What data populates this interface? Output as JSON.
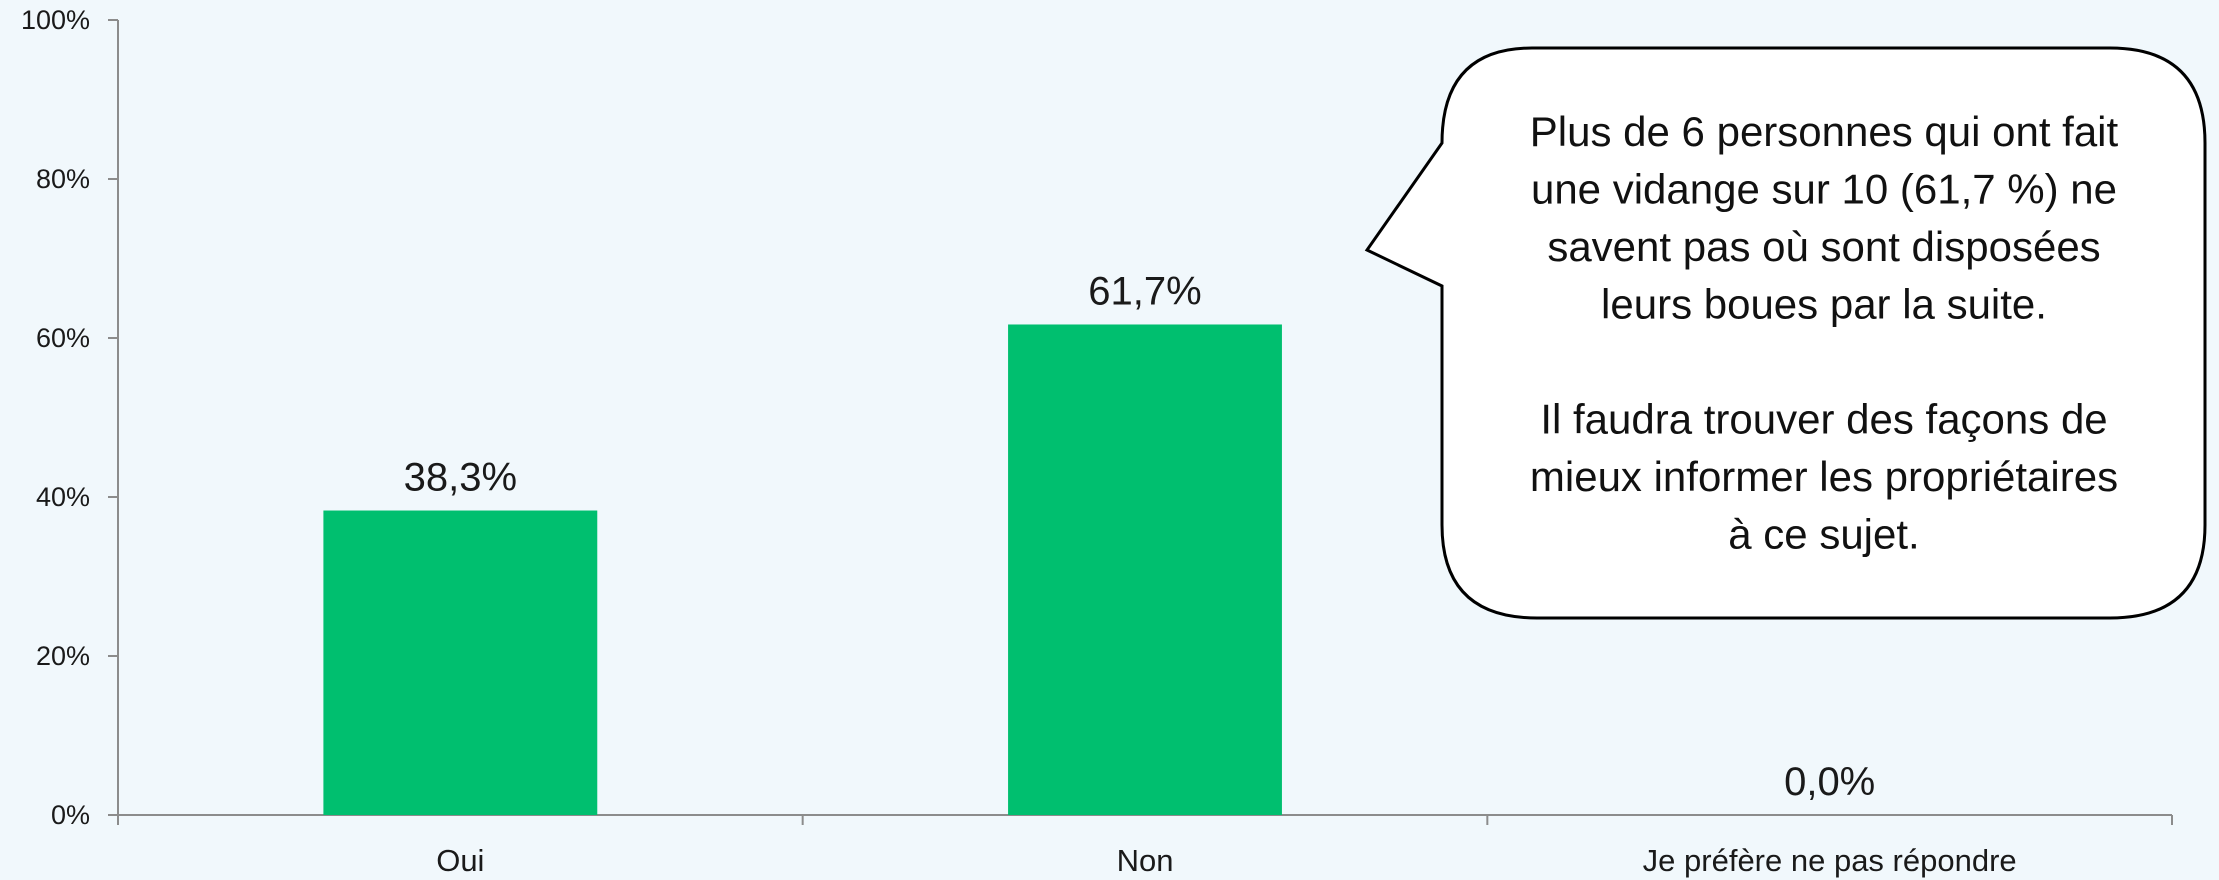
{
  "chart_data": {
    "type": "bar",
    "categories": [
      "Oui",
      "Non",
      "Je préfère ne pas répondre"
    ],
    "values": [
      38.3,
      61.7,
      0.0
    ],
    "value_labels": [
      "38,3%",
      "61,7%",
      "0,0%"
    ],
    "ylim": [
      0,
      100
    ],
    "yticks": [
      0,
      20,
      40,
      60,
      80,
      100
    ],
    "ytick_labels": [
      "0%",
      "20%",
      "40%",
      "60%",
      "80%",
      "100%"
    ],
    "grid": false,
    "legend": "none",
    "bar_color": "#00bf6f",
    "axis_color": "#8c8c8c"
  },
  "callout": {
    "lines": [
      "Plus de 6 personnes qui ont fait",
      "une vidange sur 10 (61,7 %) ne",
      "savent pas où sont disposées",
      "leurs boues par la suite.",
      "",
      "Il faudra trouver des façons de",
      "mieux informer les propriétaires",
      "à ce sujet."
    ]
  }
}
